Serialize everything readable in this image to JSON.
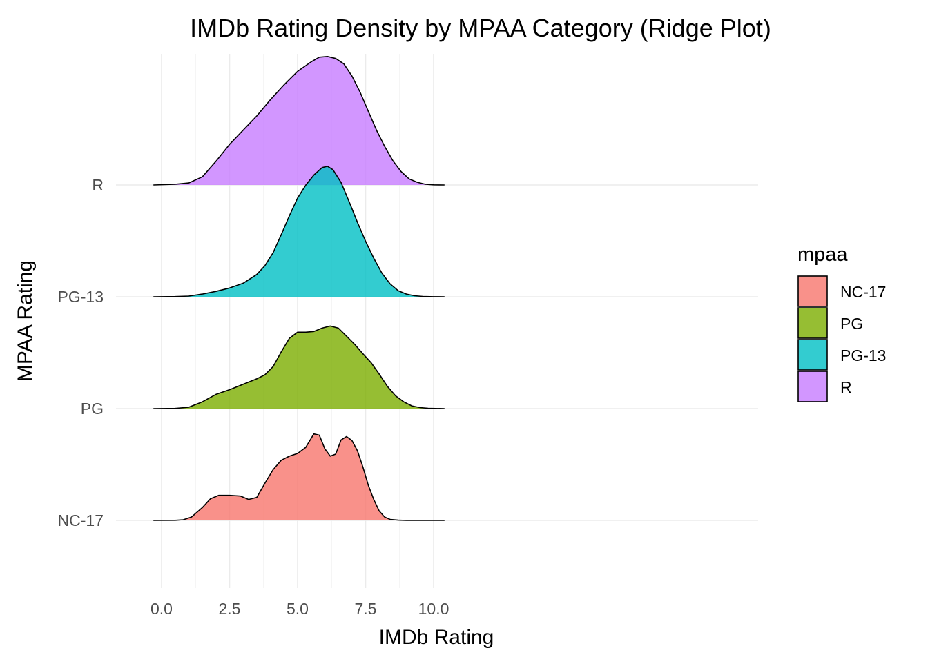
{
  "chart_data": {
    "type": "ridge",
    "title": "IMDb Rating Density by MPAA Category (Ridge Plot)",
    "xlabel": "IMDb Rating",
    "ylabel": "MPAA Rating",
    "xlim": [
      -0.3,
      10.4
    ],
    "x_ticks": [
      "0.0",
      "2.5",
      "5.0",
      "7.5",
      "10.0"
    ],
    "x_tick_values": [
      0,
      2.5,
      5,
      7.5,
      10
    ],
    "categories": [
      "NC-17",
      "PG",
      "PG-13",
      "R"
    ],
    "grid": true,
    "legend": {
      "title": "mpaa",
      "position": "right",
      "entries": [
        "NC-17",
        "PG",
        "PG-13",
        "R"
      ]
    },
    "series": [
      {
        "name": "NC-17",
        "color": "#F8766D",
        "x": [
          -0.3,
          0.5,
          0.8,
          1.1,
          1.5,
          1.8,
          2.1,
          2.5,
          2.9,
          3.2,
          3.5,
          3.8,
          4.1,
          4.4,
          4.7,
          5.0,
          5.3,
          5.6,
          5.8,
          6.0,
          6.2,
          6.4,
          6.6,
          6.8,
          7.0,
          7.2,
          7.4,
          7.6,
          7.8,
          8.0,
          8.2,
          8.4,
          8.7,
          9.0,
          10.4
        ],
        "density": [
          0,
          0.002,
          0.01,
          0.05,
          0.19,
          0.32,
          0.37,
          0.37,
          0.36,
          0.31,
          0.34,
          0.55,
          0.75,
          0.89,
          0.95,
          0.99,
          1.08,
          1.28,
          1.26,
          1.06,
          0.95,
          0.98,
          1.19,
          1.24,
          1.18,
          1.03,
          0.79,
          0.52,
          0.31,
          0.14,
          0.05,
          0.015,
          0.004,
          0,
          0
        ]
      },
      {
        "name": "PG",
        "color": "#7CAE00",
        "x": [
          -0.3,
          0.5,
          1.0,
          1.5,
          2.0,
          2.5,
          3.0,
          3.5,
          3.8,
          4.1,
          4.4,
          4.7,
          5.0,
          5.3,
          5.6,
          5.9,
          6.2,
          6.5,
          6.8,
          7.1,
          7.4,
          7.7,
          8.0,
          8.3,
          8.6,
          8.9,
          9.2,
          9.5,
          9.8,
          10.4
        ],
        "density": [
          0,
          0.003,
          0.02,
          0.1,
          0.21,
          0.28,
          0.36,
          0.44,
          0.5,
          0.62,
          0.84,
          1.04,
          1.13,
          1.13,
          1.14,
          1.19,
          1.22,
          1.19,
          1.07,
          0.95,
          0.81,
          0.68,
          0.51,
          0.33,
          0.19,
          0.1,
          0.04,
          0.015,
          0.004,
          0
        ]
      },
      {
        "name": "PG-13",
        "color": "#00BFC4",
        "x": [
          -0.3,
          0.5,
          1.0,
          1.5,
          2.0,
          2.5,
          3.0,
          3.5,
          3.8,
          4.1,
          4.4,
          4.7,
          5.0,
          5.3,
          5.6,
          5.9,
          6.1,
          6.3,
          6.6,
          6.9,
          7.2,
          7.5,
          7.8,
          8.1,
          8.4,
          8.7,
          9.0,
          9.3,
          9.6,
          10.0,
          10.4
        ],
        "density": [
          0,
          0.003,
          0.01,
          0.04,
          0.08,
          0.13,
          0.2,
          0.33,
          0.46,
          0.65,
          0.92,
          1.2,
          1.46,
          1.65,
          1.8,
          1.91,
          1.93,
          1.88,
          1.69,
          1.4,
          1.1,
          0.82,
          0.57,
          0.35,
          0.19,
          0.09,
          0.04,
          0.015,
          0.005,
          0.001,
          0
        ]
      },
      {
        "name": "R",
        "color": "#C77CFF",
        "x": [
          -0.3,
          0.5,
          1.0,
          1.5,
          2.0,
          2.5,
          3.0,
          3.5,
          4.0,
          4.5,
          5.0,
          5.5,
          5.8,
          6.1,
          6.4,
          6.7,
          7.0,
          7.3,
          7.6,
          7.9,
          8.2,
          8.5,
          8.8,
          9.1,
          9.4,
          9.7,
          10.0,
          10.4
        ],
        "density": [
          0,
          0.01,
          0.03,
          0.12,
          0.35,
          0.6,
          0.81,
          1.02,
          1.26,
          1.48,
          1.68,
          1.82,
          1.89,
          1.9,
          1.87,
          1.79,
          1.61,
          1.37,
          1.09,
          0.81,
          0.57,
          0.36,
          0.2,
          0.09,
          0.04,
          0.01,
          0.002,
          0
        ]
      }
    ]
  }
}
